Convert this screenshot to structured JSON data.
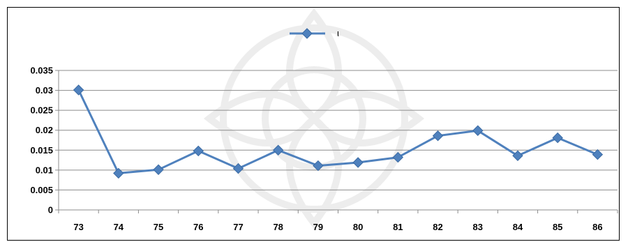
{
  "chart_data": {
    "type": "line",
    "title": "",
    "xlabel": "",
    "ylabel": "",
    "categories": [
      "73",
      "74",
      "75",
      "76",
      "77",
      "78",
      "79",
      "80",
      "81",
      "82",
      "83",
      "84",
      "85",
      "86"
    ],
    "series": [
      {
        "name": "ι",
        "color": "#4f81bd",
        "marker": "diamond",
        "values": [
          0.0301,
          0.0092,
          0.0101,
          0.0148,
          0.0104,
          0.015,
          0.0111,
          0.0119,
          0.0132,
          0.0186,
          0.0199,
          0.0136,
          0.0181,
          0.0139
        ]
      }
    ],
    "ylim": [
      0,
      0.035
    ],
    "yticks": [
      "0",
      "0.005",
      "0.01",
      "0.015",
      "0.02",
      "0.025",
      "0.03",
      "0.035"
    ],
    "grid": true,
    "legend_position": "top-center"
  }
}
